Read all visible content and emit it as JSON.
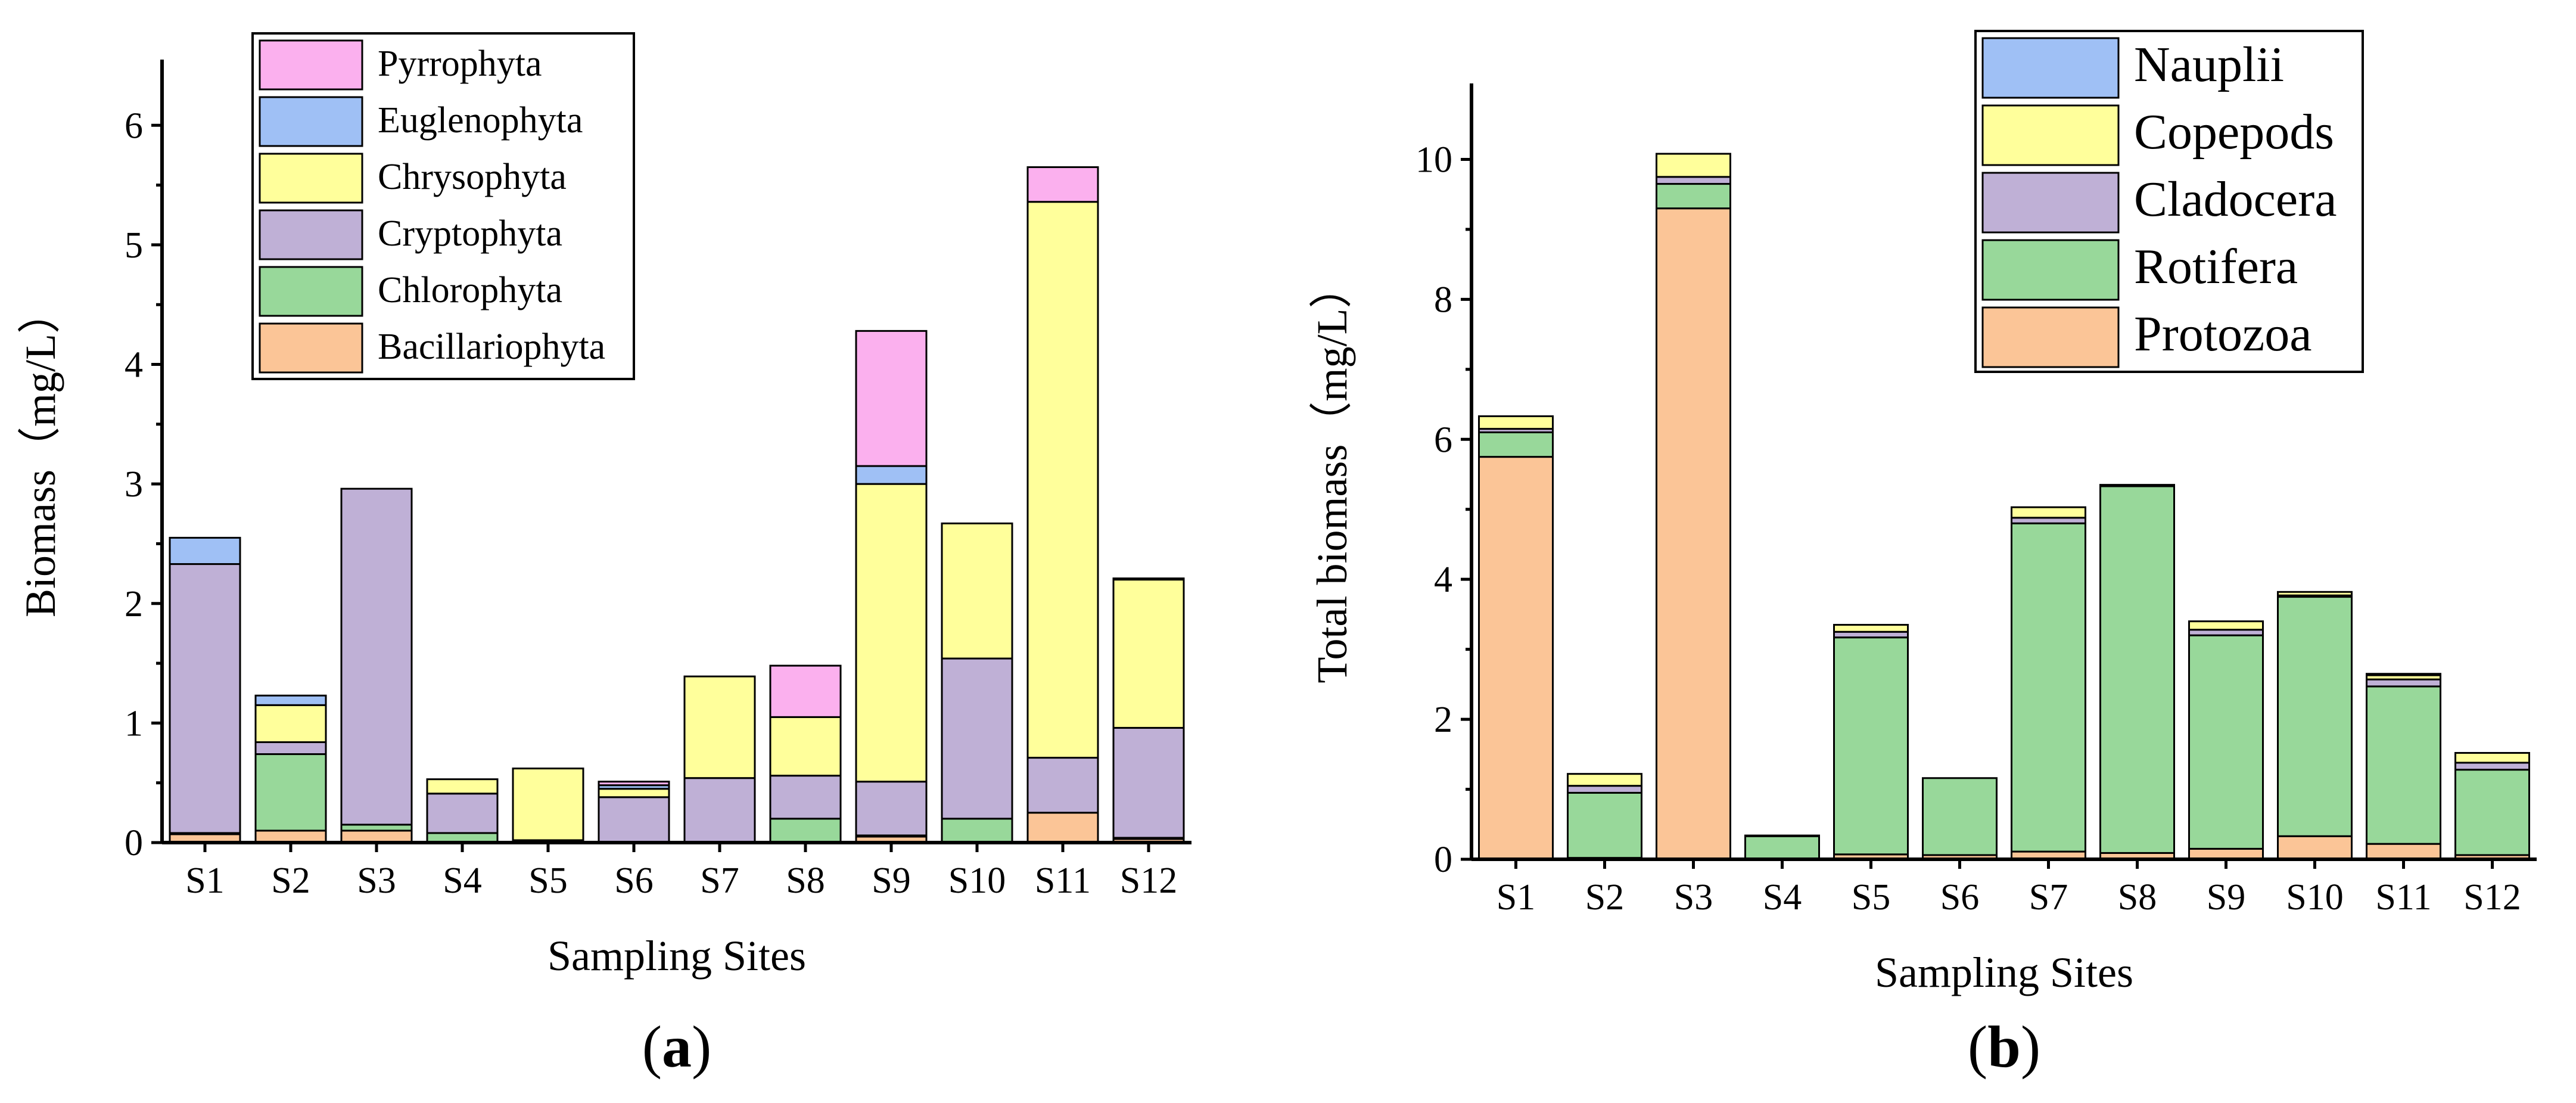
{
  "chart_data": [
    {
      "panel": "(a)",
      "type": "bar",
      "stacked": true,
      "xlabel": "Sampling Sites",
      "ylabel": "Biomass（mg/L）",
      "ylim": [
        0,
        6.5
      ],
      "yticks": [
        0,
        1,
        2,
        3,
        4,
        5,
        6
      ],
      "legend_position": "top-center",
      "categories": [
        "S1",
        "S2",
        "S3",
        "S4",
        "S5",
        "S6",
        "S7",
        "S8",
        "S9",
        "S10",
        "S11",
        "S12"
      ],
      "series": [
        {
          "name": "Bacillariophyta",
          "color": "#FBC597",
          "values": [
            0.07,
            0.1,
            0.1,
            0.0,
            0.01,
            0.0,
            0.0,
            0.0,
            0.05,
            0.0,
            0.25,
            0.03
          ]
        },
        {
          "name": "Chlorophyta",
          "color": "#98D89A",
          "values": [
            0.01,
            0.64,
            0.05,
            0.08,
            0.01,
            0.0,
            0.0,
            0.2,
            0.01,
            0.2,
            0.0,
            0.01
          ]
        },
        {
          "name": "Cryptophyta",
          "color": "#BFB0D6",
          "values": [
            2.25,
            0.1,
            2.81,
            0.33,
            0.0,
            0.38,
            0.54,
            0.36,
            0.45,
            1.34,
            0.46,
            0.92
          ]
        },
        {
          "name": "Chrysophyta",
          "color": "#FFFF9B",
          "values": [
            0.0,
            0.31,
            0.0,
            0.12,
            0.6,
            0.07,
            0.85,
            0.49,
            2.49,
            1.13,
            4.65,
            1.24
          ]
        },
        {
          "name": "Euglenophyta",
          "color": "#9FC0F5",
          "values": [
            0.22,
            0.08,
            0.0,
            0.0,
            0.0,
            0.03,
            0.0,
            0.0,
            0.15,
            0.0,
            0.0,
            0.01
          ]
        },
        {
          "name": "Pyrrophyta",
          "color": "#FBB0EE",
          "values": [
            0.0,
            0.0,
            0.0,
            0.0,
            0.0,
            0.03,
            0.0,
            0.43,
            1.13,
            0.0,
            0.29,
            0.0
          ]
        }
      ]
    },
    {
      "panel": "(b)",
      "type": "bar",
      "stacked": true,
      "xlabel": "Sampling Sites",
      "ylabel": "Total biomass（mg/L）",
      "ylim": [
        0,
        11
      ],
      "yticks": [
        0,
        2,
        4,
        6,
        8,
        10
      ],
      "legend_position": "top-right",
      "categories": [
        "S1",
        "S2",
        "S3",
        "S4",
        "S5",
        "S6",
        "S7",
        "S8",
        "S9",
        "S10",
        "S11",
        "S12"
      ],
      "series": [
        {
          "name": "Protozoa",
          "color": "#FBC597",
          "values": [
            5.75,
            0.02,
            9.3,
            0.0,
            0.07,
            0.06,
            0.11,
            0.09,
            0.15,
            0.33,
            0.22,
            0.06
          ]
        },
        {
          "name": "Rotifera",
          "color": "#98D89A",
          "values": [
            0.35,
            0.93,
            0.35,
            0.33,
            3.1,
            1.1,
            4.69,
            5.24,
            3.05,
            3.42,
            2.25,
            1.22
          ]
        },
        {
          "name": "Cladocera",
          "color": "#BFB0D6",
          "values": [
            0.05,
            0.1,
            0.1,
            0.01,
            0.08,
            0.0,
            0.08,
            0.0,
            0.08,
            0.02,
            0.1,
            0.1
          ]
        },
        {
          "name": "Copepods",
          "color": "#FFFF9B",
          "values": [
            0.18,
            0.17,
            0.33,
            0.0,
            0.1,
            0.0,
            0.15,
            0.01,
            0.12,
            0.05,
            0.06,
            0.14
          ]
        },
        {
          "name": "Nauplii",
          "color": "#9FC0F5",
          "values": [
            0.0,
            0.0,
            0.0,
            0.0,
            0.0,
            0.0,
            0.0,
            0.01,
            0.0,
            0.0,
            0.02,
            0.0
          ]
        }
      ]
    }
  ]
}
